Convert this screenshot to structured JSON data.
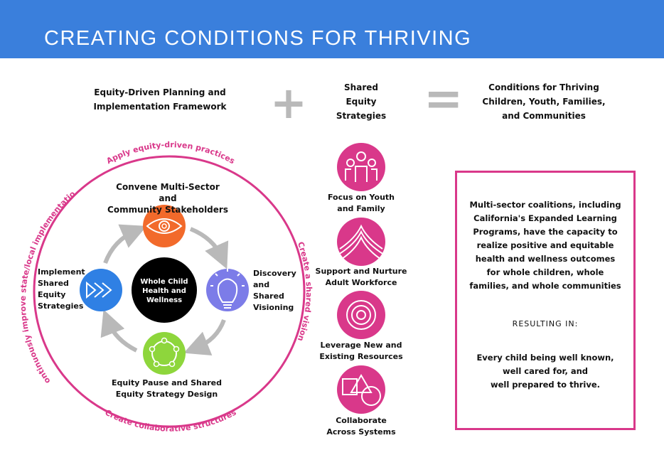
{
  "title": "CREATING CONDITIONS FOR THRIVING",
  "equation": {
    "framework": [
      "Equity-Driven Planning and",
      "Implementation Framework"
    ],
    "plus": "+",
    "strategies": [
      "Shared",
      "Equity",
      "Strategies"
    ],
    "equals": "=",
    "conditions": [
      "Conditions for Thriving",
      "Children, Youth, Families,",
      "and Communities"
    ]
  },
  "ring": {
    "top": "Apply equity-driven practices",
    "right": "Create a shared vision",
    "bottom": "Create collaborative structures",
    "left": "Continuously improve state/local implementation"
  },
  "cycle": {
    "center": [
      "Whole Child",
      "Health and",
      "Wellness"
    ],
    "convene": [
      "Convene Multi-Sector and",
      "Community Stakeholders"
    ],
    "discovery": [
      "Discovery",
      "and",
      "Shared",
      "Visioning"
    ],
    "pause": [
      "Equity Pause and Shared",
      "Equity Strategy Design"
    ],
    "implement": [
      "Implement",
      "Shared",
      "Equity",
      "Strategies"
    ]
  },
  "strategy_items": [
    {
      "icon": "people-icon",
      "label": [
        "Focus on Youth",
        "and Family"
      ]
    },
    {
      "icon": "chevrons-up-icon",
      "label": [
        "Support and Nurture",
        "Adult Workforce"
      ]
    },
    {
      "icon": "concentric-circles-icon",
      "label": [
        "Leverage New and",
        "Existing Resources"
      ]
    },
    {
      "icon": "shapes-icon",
      "label": [
        "Collaborate",
        "Across Systems"
      ]
    }
  ],
  "outcome_box": {
    "statement": [
      "Multi-sector coalitions, including",
      "California's Expanded Learning",
      "Programs, have the capacity to",
      "realize positive and equitable",
      "health and wellness outcomes",
      "for whole children, whole",
      "families, and whole communities"
    ],
    "resulting": "RESULTING IN:",
    "result": [
      "Every child being well known,",
      "well cared for, and",
      "well prepared to thrive."
    ]
  },
  "colors": {
    "header": "#3a7fdc",
    "pink": "#d9388a",
    "orange": "#f26a2b",
    "purple": "#7c7ce8",
    "green": "#8ed63c",
    "blue": "#2f80e4",
    "arrow": "#b9b9b9"
  }
}
